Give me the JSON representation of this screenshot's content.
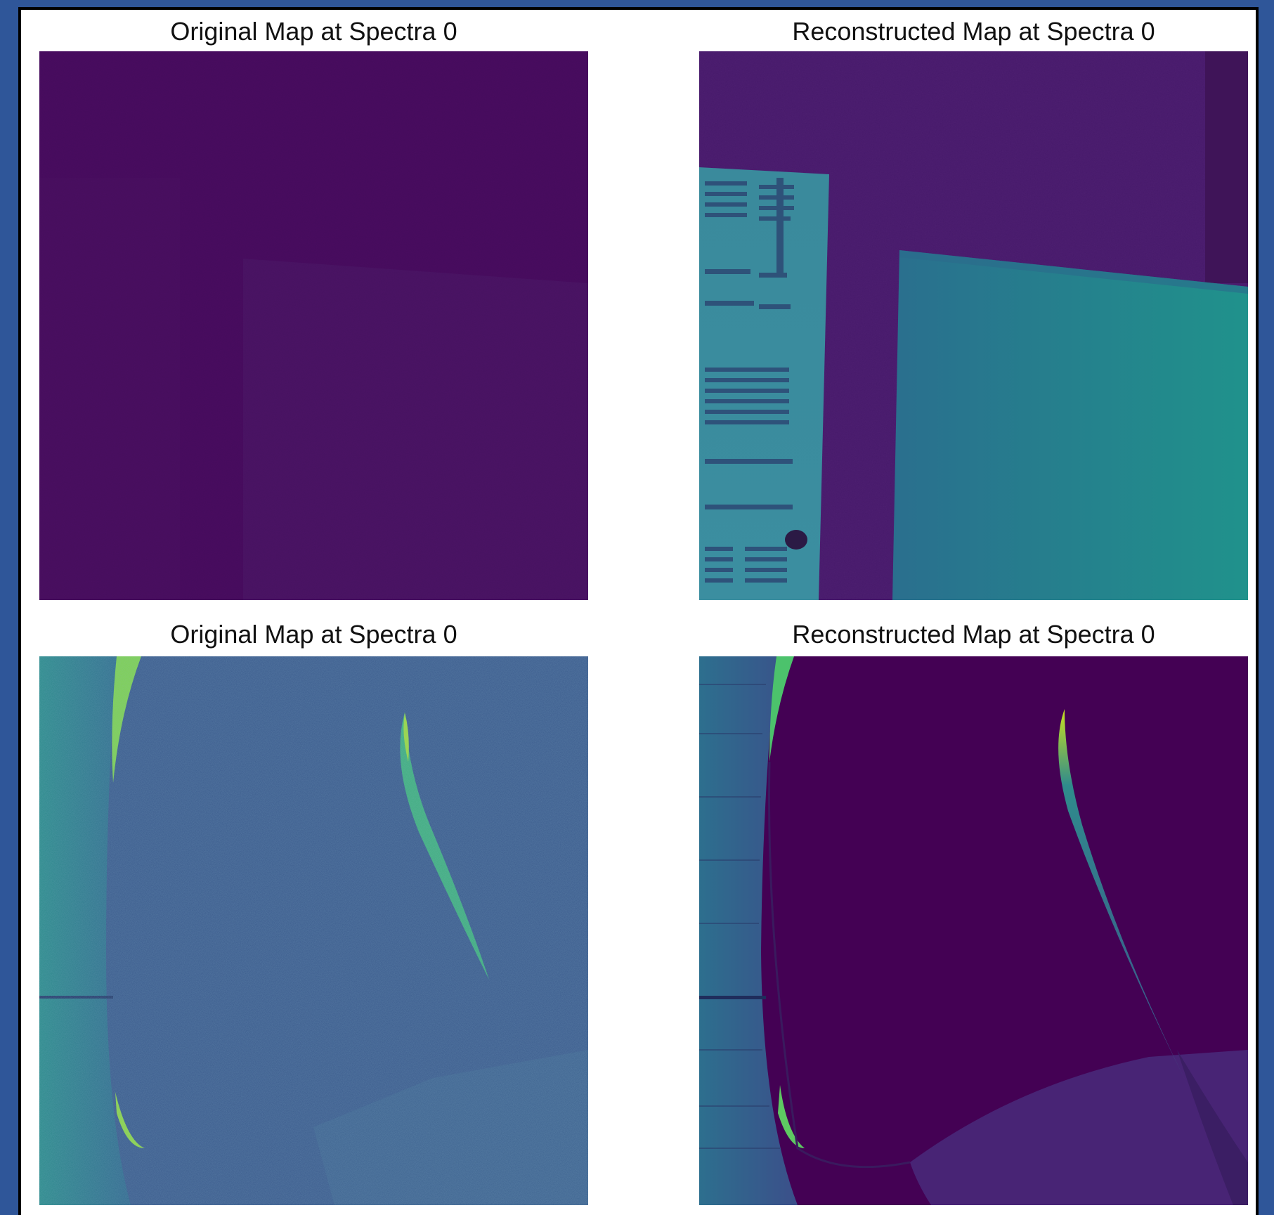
{
  "panels": [
    {
      "title": "Original Map at Spectra 0"
    },
    {
      "title": "Reconstructed Map at Spectra 0"
    },
    {
      "title": "Original Map at Spectra 0"
    },
    {
      "title": "Reconstructed Map at Spectra 0"
    }
  ],
  "colors": {
    "background": "#2f5699",
    "frame": "#000000",
    "figure": "#ffffff",
    "viridis_dark": "#440154",
    "viridis_purple": "#46105f",
    "viridis_blue": "#3b528b",
    "viridis_teal": "#21918c",
    "viridis_green": "#5ec962",
    "viridis_yellow": "#bddf26"
  }
}
